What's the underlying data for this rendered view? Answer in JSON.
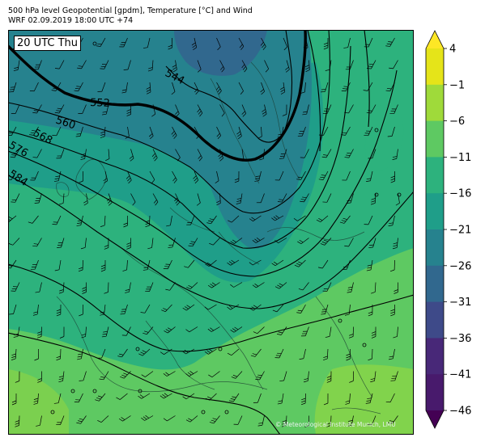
{
  "header": {
    "line1": "500 hPa level Geopotential [gpdm], Temperature [°C] and Wind",
    "line2": "WRF 02.09.2019 18:00 UTC +74"
  },
  "time_label": "20 UTC Thu",
  "credit": "© Meteorological Institute Munich, LMU",
  "geopotential_contours": {
    "unit": "gpdm",
    "labels": [
      "544",
      "552",
      "560",
      "568",
      "576",
      "584"
    ],
    "highlighted": "552"
  },
  "colorbar": {
    "unit": "°C",
    "tick_labels": [
      "4",
      "−1",
      "−6",
      "−11",
      "−16",
      "−21",
      "−26",
      "−31",
      "−36",
      "−41",
      "−46"
    ],
    "tick_values": [
      4,
      -1,
      -6,
      -11,
      -16,
      -21,
      -26,
      -31,
      -36,
      -41,
      -46
    ],
    "colors": {
      "extend_max": "#fde725",
      "b_m1_4": "#e5e419",
      "b_m6_m1": "#9fda3a",
      "b_m11_m6": "#5ec962",
      "b_m16_m11": "#2db27d",
      "b_m21_m16": "#1f9e89",
      "b_m26_m21": "#26828e",
      "b_m31_m26": "#31688e",
      "b_m36_m31": "#3e4a89",
      "b_m41_m36": "#482878",
      "b_m46_m41": "#481a6c",
      "extend_min": "#440154"
    }
  }
}
